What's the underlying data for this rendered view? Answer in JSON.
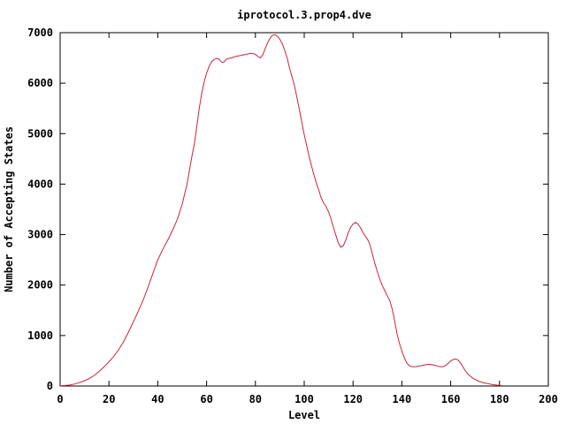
{
  "chart_data": {
    "type": "line",
    "title": "iprotocol.3.prop4.dve",
    "xlabel": "Level",
    "ylabel": "Number of Accepting States",
    "xlim": [
      0,
      200
    ],
    "ylim": [
      0,
      7000
    ],
    "xticks": [
      0,
      20,
      40,
      60,
      80,
      100,
      120,
      140,
      160,
      180,
      200
    ],
    "yticks": [
      0,
      1000,
      2000,
      3000,
      4000,
      5000,
      6000,
      7000
    ],
    "grid": false,
    "legend_position": "none",
    "line_color": "#c82440",
    "frame_color": "#000000",
    "background_color": "#ffffff",
    "series": [
      {
        "name": "iprotocol.3.prop4.dve",
        "points": [
          [
            0,
            5
          ],
          [
            2,
            10
          ],
          [
            4,
            20
          ],
          [
            6,
            40
          ],
          [
            8,
            70
          ],
          [
            10,
            105
          ],
          [
            12,
            150
          ],
          [
            14,
            210
          ],
          [
            16,
            290
          ],
          [
            18,
            380
          ],
          [
            20,
            480
          ],
          [
            22,
            590
          ],
          [
            24,
            720
          ],
          [
            26,
            880
          ],
          [
            28,
            1070
          ],
          [
            30,
            1270
          ],
          [
            32,
            1480
          ],
          [
            34,
            1700
          ],
          [
            36,
            1960
          ],
          [
            38,
            2230
          ],
          [
            40,
            2500
          ],
          [
            42,
            2700
          ],
          [
            44,
            2880
          ],
          [
            46,
            3080
          ],
          [
            48,
            3300
          ],
          [
            50,
            3600
          ],
          [
            52,
            4000
          ],
          [
            54,
            4550
          ],
          [
            55,
            4800
          ],
          [
            56,
            5150
          ],
          [
            57,
            5500
          ],
          [
            58,
            5800
          ],
          [
            59,
            6020
          ],
          [
            60,
            6200
          ],
          [
            61,
            6330
          ],
          [
            62,
            6420
          ],
          [
            63,
            6470
          ],
          [
            64,
            6490
          ],
          [
            65,
            6480
          ],
          [
            66,
            6420
          ],
          [
            67,
            6410
          ],
          [
            68,
            6470
          ],
          [
            69,
            6490
          ],
          [
            70,
            6500
          ],
          [
            72,
            6530
          ],
          [
            74,
            6550
          ],
          [
            76,
            6570
          ],
          [
            78,
            6590
          ],
          [
            79,
            6590
          ],
          [
            80,
            6570
          ],
          [
            81,
            6530
          ],
          [
            82,
            6500
          ],
          [
            83,
            6560
          ],
          [
            84,
            6680
          ],
          [
            85,
            6800
          ],
          [
            86,
            6890
          ],
          [
            87,
            6950
          ],
          [
            88,
            6960
          ],
          [
            89,
            6930
          ],
          [
            90,
            6870
          ],
          [
            91,
            6780
          ],
          [
            92,
            6650
          ],
          [
            93,
            6500
          ],
          [
            94,
            6300
          ],
          [
            95,
            6120
          ],
          [
            96,
            5950
          ],
          [
            97,
            5720
          ],
          [
            98,
            5480
          ],
          [
            99,
            5230
          ],
          [
            100,
            4980
          ],
          [
            101,
            4760
          ],
          [
            102,
            4550
          ],
          [
            103,
            4360
          ],
          [
            104,
            4180
          ],
          [
            105,
            4020
          ],
          [
            106,
            3870
          ],
          [
            107,
            3720
          ],
          [
            108,
            3620
          ],
          [
            109,
            3550
          ],
          [
            110,
            3450
          ],
          [
            111,
            3300
          ],
          [
            112,
            3140
          ],
          [
            113,
            2980
          ],
          [
            114,
            2830
          ],
          [
            115,
            2750
          ],
          [
            116,
            2780
          ],
          [
            117,
            2890
          ],
          [
            118,
            3030
          ],
          [
            119,
            3140
          ],
          [
            120,
            3210
          ],
          [
            121,
            3240
          ],
          [
            122,
            3210
          ],
          [
            123,
            3140
          ],
          [
            124,
            3050
          ],
          [
            125,
            2970
          ],
          [
            126,
            2900
          ],
          [
            127,
            2790
          ],
          [
            128,
            2600
          ],
          [
            129,
            2420
          ],
          [
            130,
            2260
          ],
          [
            131,
            2110
          ],
          [
            132,
            1990
          ],
          [
            133,
            1890
          ],
          [
            134,
            1790
          ],
          [
            135,
            1700
          ],
          [
            136,
            1530
          ],
          [
            137,
            1300
          ],
          [
            138,
            1040
          ],
          [
            139,
            850
          ],
          [
            140,
            690
          ],
          [
            141,
            560
          ],
          [
            142,
            460
          ],
          [
            143,
            405
          ],
          [
            144,
            385
          ],
          [
            145,
            380
          ],
          [
            146,
            385
          ],
          [
            147,
            395
          ],
          [
            148,
            405
          ],
          [
            149,
            415
          ],
          [
            150,
            425
          ],
          [
            151,
            430
          ],
          [
            152,
            425
          ],
          [
            153,
            415
          ],
          [
            154,
            405
          ],
          [
            155,
            390
          ],
          [
            156,
            380
          ],
          [
            157,
            385
          ],
          [
            158,
            410
          ],
          [
            159,
            450
          ],
          [
            160,
            495
          ],
          [
            161,
            525
          ],
          [
            162,
            535
          ],
          [
            163,
            515
          ],
          [
            164,
            460
          ],
          [
            165,
            380
          ],
          [
            166,
            300
          ],
          [
            167,
            240
          ],
          [
            168,
            195
          ],
          [
            169,
            160
          ],
          [
            170,
            130
          ],
          [
            171,
            105
          ],
          [
            172,
            85
          ],
          [
            173,
            70
          ],
          [
            174,
            60
          ],
          [
            175,
            50
          ],
          [
            176,
            40
          ],
          [
            177,
            32
          ],
          [
            178,
            25
          ],
          [
            179,
            18
          ],
          [
            180,
            12
          ],
          [
            181,
            8
          ]
        ]
      }
    ]
  }
}
